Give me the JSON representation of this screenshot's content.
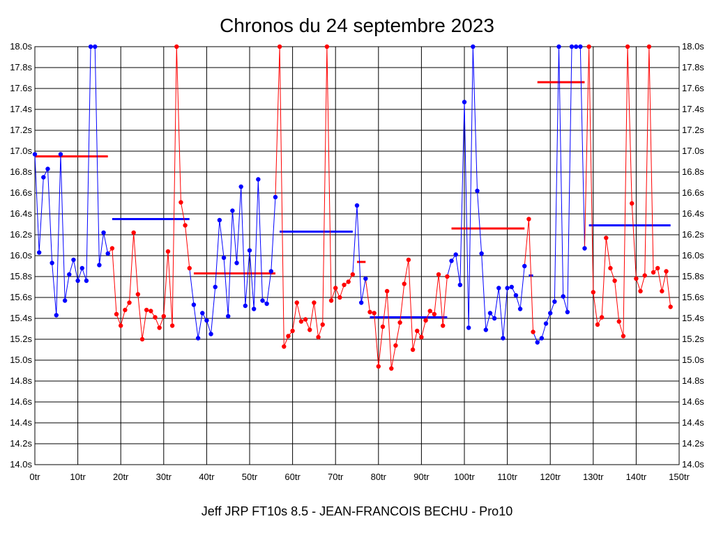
{
  "chart_data": {
    "type": "line",
    "title": "Chronos du 24 septembre 2023",
    "subtitle": "Jeff JRP FT10s 8.5 - JEAN-FRANCOIS BECHU - Pro10",
    "xlabel": "",
    "ylabel": "",
    "xlim": [
      0,
      150
    ],
    "ylim": [
      14.0,
      18.0
    ],
    "grid": true,
    "x_ticks": [
      0,
      10,
      20,
      30,
      40,
      50,
      60,
      70,
      80,
      90,
      100,
      110,
      120,
      130,
      140,
      150
    ],
    "x_tick_labels": [
      "0tr",
      "10tr",
      "20tr",
      "30tr",
      "40tr",
      "50tr",
      "60tr",
      "70tr",
      "80tr",
      "90tr",
      "100tr",
      "110tr",
      "120tr",
      "130tr",
      "140tr",
      "150tr"
    ],
    "y_ticks": [
      14.0,
      14.2,
      14.4,
      14.6,
      14.8,
      15.0,
      15.2,
      15.4,
      15.6,
      15.8,
      16.0,
      16.2,
      16.4,
      16.6,
      16.8,
      17.0,
      17.2,
      17.4,
      17.6,
      17.8,
      18.0
    ],
    "y_tick_labels": [
      "14.0s",
      "14.2s",
      "14.4s",
      "14.6s",
      "14.8s",
      "15.0s",
      "15.2s",
      "15.4s",
      "15.6s",
      "15.8s",
      "16.0s",
      "16.2s",
      "16.4s",
      "16.6s",
      "16.8s",
      "17.0s",
      "17.2s",
      "17.4s",
      "17.6s",
      "17.8s",
      "18.0s"
    ],
    "colors": {
      "blue": "#0000ff",
      "red": "#ff0000",
      "grid": "#000000"
    },
    "series": [
      {
        "color": "blue",
        "points": [
          [
            0,
            16.97
          ],
          [
            1,
            16.03
          ],
          [
            2,
            16.75
          ],
          [
            3,
            16.83
          ],
          [
            4,
            15.93
          ],
          [
            5,
            15.43
          ],
          [
            6,
            16.97
          ],
          [
            7,
            15.57
          ],
          [
            8,
            15.82
          ],
          [
            9,
            15.96
          ],
          [
            10,
            15.76
          ],
          [
            11,
            15.88
          ],
          [
            12,
            15.76
          ],
          [
            13,
            18.0
          ],
          [
            14,
            18.0
          ],
          [
            15,
            15.91
          ],
          [
            16,
            16.22
          ],
          [
            17,
            16.02
          ]
        ]
      },
      {
        "color": "red",
        "points": [
          [
            18,
            16.07
          ],
          [
            19,
            15.44
          ],
          [
            20,
            15.33
          ],
          [
            21,
            15.48
          ],
          [
            22,
            15.55
          ],
          [
            23,
            16.22
          ],
          [
            24,
            15.63
          ],
          [
            25,
            15.2
          ],
          [
            26,
            15.48
          ],
          [
            27,
            15.47
          ],
          [
            28,
            15.41
          ],
          [
            29,
            15.31
          ],
          [
            30,
            15.42
          ],
          [
            31,
            16.04
          ],
          [
            32,
            15.33
          ],
          [
            33,
            18.0
          ],
          [
            34,
            16.51
          ],
          [
            35,
            16.29
          ],
          [
            36,
            15.88
          ]
        ]
      },
      {
        "color": "blue",
        "points": [
          [
            37,
            15.53
          ],
          [
            38,
            15.21
          ],
          [
            39,
            15.45
          ],
          [
            40,
            15.38
          ],
          [
            41,
            15.25
          ],
          [
            42,
            15.7
          ],
          [
            43,
            16.34
          ],
          [
            44,
            15.98
          ],
          [
            45,
            15.42
          ],
          [
            46,
            16.43
          ],
          [
            47,
            15.93
          ],
          [
            48,
            16.66
          ],
          [
            49,
            15.52
          ],
          [
            50,
            16.05
          ],
          [
            51,
            15.49
          ],
          [
            52,
            16.73
          ],
          [
            53,
            15.57
          ],
          [
            54,
            15.54
          ],
          [
            55,
            15.85
          ],
          [
            56,
            16.56
          ]
        ]
      },
      {
        "color": "red",
        "points": [
          [
            57,
            18.0
          ],
          [
            58,
            15.13
          ],
          [
            59,
            15.23
          ],
          [
            60,
            15.28
          ],
          [
            61,
            15.55
          ],
          [
            62,
            15.37
          ],
          [
            63,
            15.39
          ],
          [
            64,
            15.29
          ],
          [
            65,
            15.55
          ],
          [
            66,
            15.22
          ],
          [
            67,
            15.34
          ],
          [
            68,
            18.0
          ],
          [
            69,
            15.57
          ],
          [
            70,
            15.69
          ],
          [
            71,
            15.6
          ],
          [
            72,
            15.72
          ],
          [
            73,
            15.75
          ],
          [
            74,
            15.82
          ]
        ]
      },
      {
        "color": "blue",
        "points": [
          [
            75,
            16.48
          ],
          [
            76,
            15.55
          ],
          [
            77,
            15.78
          ]
        ]
      },
      {
        "color": "red",
        "points": [
          [
            78,
            15.46
          ],
          [
            79,
            15.45
          ],
          [
            80,
            14.94
          ],
          [
            81,
            15.32
          ],
          [
            82,
            15.66
          ],
          [
            83,
            14.92
          ],
          [
            84,
            15.14
          ],
          [
            85,
            15.36
          ],
          [
            86,
            15.73
          ],
          [
            87,
            15.96
          ],
          [
            88,
            15.1
          ],
          [
            89,
            15.28
          ],
          [
            90,
            15.22
          ],
          [
            91,
            15.38
          ],
          [
            92,
            15.47
          ],
          [
            93,
            15.44
          ],
          [
            94,
            15.82
          ],
          [
            95,
            15.33
          ],
          [
            96,
            15.8
          ]
        ]
      },
      {
        "color": "blue",
        "points": [
          [
            97,
            15.95
          ],
          [
            98,
            16.01
          ],
          [
            99,
            15.72
          ],
          [
            100,
            17.47
          ],
          [
            101,
            15.31
          ],
          [
            102,
            18.0
          ],
          [
            103,
            16.62
          ],
          [
            104,
            16.02
          ],
          [
            105,
            15.29
          ],
          [
            106,
            15.45
          ],
          [
            107,
            15.4
          ],
          [
            108,
            15.69
          ],
          [
            109,
            15.21
          ],
          [
            110,
            15.69
          ],
          [
            111,
            15.7
          ],
          [
            112,
            15.62
          ],
          [
            113,
            15.49
          ],
          [
            114,
            15.9
          ]
        ]
      },
      {
        "color": "red",
        "points": [
          [
            115,
            16.35
          ],
          [
            116,
            15.27
          ]
        ]
      },
      {
        "color": "blue",
        "points": [
          [
            117,
            15.17
          ],
          [
            118,
            15.21
          ],
          [
            119,
            15.35
          ],
          [
            120,
            15.45
          ],
          [
            121,
            15.56
          ],
          [
            122,
            18.0
          ],
          [
            123,
            15.61
          ],
          [
            124,
            15.46
          ],
          [
            125,
            18.0
          ],
          [
            126,
            18.0
          ],
          [
            127,
            18.0
          ],
          [
            128,
            16.07
          ]
        ]
      },
      {
        "color": "red",
        "points": [
          [
            129,
            18.0
          ],
          [
            130,
            15.65
          ],
          [
            131,
            15.34
          ],
          [
            132,
            15.41
          ],
          [
            133,
            16.17
          ],
          [
            134,
            15.88
          ],
          [
            135,
            15.76
          ],
          [
            136,
            15.37
          ],
          [
            137,
            15.23
          ],
          [
            138,
            18.0
          ],
          [
            139,
            16.5
          ],
          [
            140,
            15.78
          ],
          [
            141,
            15.66
          ],
          [
            142,
            15.81
          ],
          [
            143,
            18.0
          ],
          [
            144,
            15.84
          ],
          [
            145,
            15.88
          ],
          [
            146,
            15.66
          ],
          [
            147,
            15.85
          ],
          [
            148,
            15.51
          ]
        ]
      }
    ],
    "averages": [
      {
        "color": "red",
        "x": [
          0,
          17
        ],
        "y": 16.95
      },
      {
        "color": "blue",
        "x": [
          18,
          36
        ],
        "y": 16.35
      },
      {
        "color": "red",
        "x": [
          37,
          56
        ],
        "y": 15.83
      },
      {
        "color": "blue",
        "x": [
          57,
          74
        ],
        "y": 16.23
      },
      {
        "color": "red",
        "x": [
          75,
          77
        ],
        "y": 15.94
      },
      {
        "color": "blue",
        "x": [
          78,
          96
        ],
        "y": 15.41
      },
      {
        "color": "red",
        "x": [
          97,
          114
        ],
        "y": 16.26
      },
      {
        "color": "blue",
        "x": [
          115,
          116
        ],
        "y": 15.81
      },
      {
        "color": "red",
        "x": [
          117,
          128
        ],
        "y": 17.66
      },
      {
        "color": "blue",
        "x": [
          129,
          148
        ],
        "y": 16.29
      }
    ]
  }
}
